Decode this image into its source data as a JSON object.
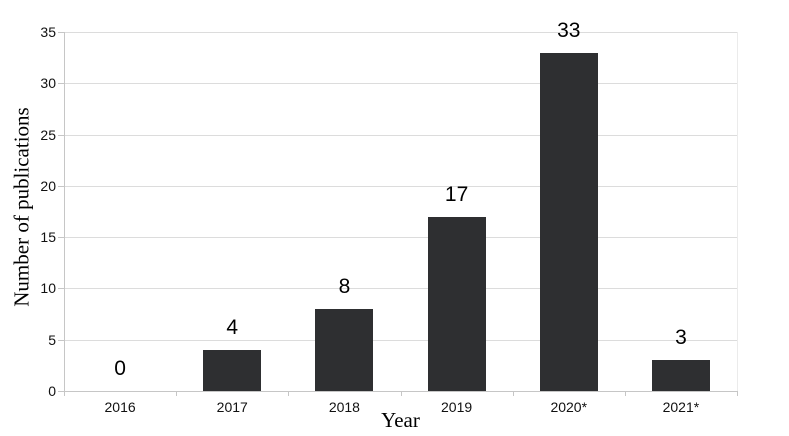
{
  "chart_data": {
    "type": "bar",
    "title": "",
    "categories": [
      "2016",
      "2017",
      "2018",
      "2019",
      "2020*",
      "2021*"
    ],
    "values": [
      0,
      4,
      8,
      17,
      33,
      3
    ],
    "xlabel": "Year",
    "ylabel": "Number of publications",
    "ylim": [
      0,
      35
    ],
    "yticks": [
      0,
      5,
      10,
      15,
      20,
      25,
      30,
      35
    ],
    "grid": "horizontal-only",
    "legend_position": "none",
    "show_value_labels": true,
    "colors": {
      "bar": "#2e2f31",
      "gridline": "#dcdcdc",
      "axis": "#c6c6c6",
      "plot_right_border": "#ebebeb",
      "text": "#111111",
      "background": "#ffffff"
    }
  }
}
